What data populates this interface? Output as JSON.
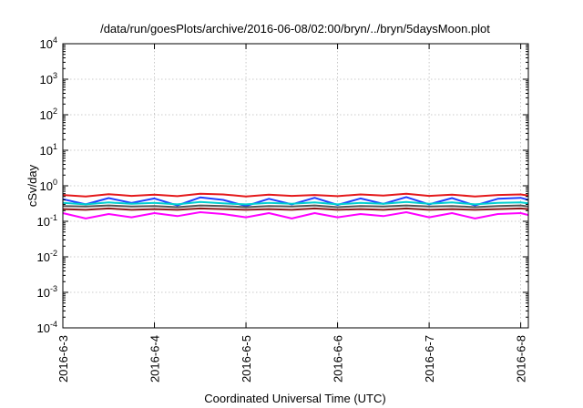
{
  "chart_data": {
    "type": "line",
    "title": "/data/run/goesPlots/archive/2016-06-08/02:00/bryn/../bryn/5daysMoon.plot",
    "xlabel": "Coordinated Universal Time (UTC)",
    "ylabel": "cSv/day",
    "yscale": "log",
    "ylim": [
      0.0001,
      10000
    ],
    "xlim": [
      "2016-06-03T00:00",
      "2016-06-08T02:00"
    ],
    "grid": true,
    "legend": "none",
    "y_ticks": [
      {
        "value": 0.0001,
        "base": "10",
        "exp": "-4"
      },
      {
        "value": 0.001,
        "base": "10",
        "exp": "-3"
      },
      {
        "value": 0.01,
        "base": "10",
        "exp": "-2"
      },
      {
        "value": 0.1,
        "base": "10",
        "exp": "-1"
      },
      {
        "value": 1,
        "base": "10",
        "exp": "0"
      },
      {
        "value": 10,
        "base": "10",
        "exp": "1"
      },
      {
        "value": 100,
        "base": "10",
        "exp": "2"
      },
      {
        "value": 1000,
        "base": "10",
        "exp": "3"
      },
      {
        "value": 10000,
        "base": "10",
        "exp": "4"
      }
    ],
    "x_ticks": [
      {
        "value": "2016-06-03T00:00",
        "label": "2016-6-3"
      },
      {
        "value": "2016-06-04T00:00",
        "label": "2016-6-4"
      },
      {
        "value": "2016-06-05T00:00",
        "label": "2016-6-5"
      },
      {
        "value": "2016-06-06T00:00",
        "label": "2016-6-6"
      },
      {
        "value": "2016-06-07T00:00",
        "label": "2016-6-7"
      },
      {
        "value": "2016-06-08T00:00",
        "label": "2016-6-8"
      }
    ],
    "series": [
      {
        "color": "#e41a1c",
        "values": [
          {
            "x": "2016-06-03T00:00",
            "y": 0.55
          },
          {
            "x": "2016-06-03T06:00",
            "y": 0.5
          },
          {
            "x": "2016-06-03T12:00",
            "y": 0.58
          },
          {
            "x": "2016-06-03T18:00",
            "y": 0.52
          },
          {
            "x": "2016-06-04T00:00",
            "y": 0.56
          },
          {
            "x": "2016-06-04T06:00",
            "y": 0.51
          },
          {
            "x": "2016-06-04T12:00",
            "y": 0.6
          },
          {
            "x": "2016-06-04T18:00",
            "y": 0.57
          },
          {
            "x": "2016-06-05T00:00",
            "y": 0.5
          },
          {
            "x": "2016-06-05T06:00",
            "y": 0.56
          },
          {
            "x": "2016-06-05T12:00",
            "y": 0.52
          },
          {
            "x": "2016-06-05T18:00",
            "y": 0.55
          },
          {
            "x": "2016-06-06T00:00",
            "y": 0.51
          },
          {
            "x": "2016-06-06T06:00",
            "y": 0.57
          },
          {
            "x": "2016-06-06T12:00",
            "y": 0.53
          },
          {
            "x": "2016-06-06T18:00",
            "y": 0.6
          },
          {
            "x": "2016-06-07T00:00",
            "y": 0.52
          },
          {
            "x": "2016-06-07T06:00",
            "y": 0.56
          },
          {
            "x": "2016-06-07T12:00",
            "y": 0.5
          },
          {
            "x": "2016-06-07T18:00",
            "y": 0.55
          },
          {
            "x": "2016-06-08T00:00",
            "y": 0.57
          },
          {
            "x": "2016-06-08T02:00",
            "y": 0.53
          }
        ]
      },
      {
        "color": "#1f3fff",
        "values": [
          {
            "x": "2016-06-03T00:00",
            "y": 0.42
          },
          {
            "x": "2016-06-03T06:00",
            "y": 0.3
          },
          {
            "x": "2016-06-03T12:00",
            "y": 0.45
          },
          {
            "x": "2016-06-03T18:00",
            "y": 0.33
          },
          {
            "x": "2016-06-04T00:00",
            "y": 0.44
          },
          {
            "x": "2016-06-04T06:00",
            "y": 0.28
          },
          {
            "x": "2016-06-04T12:00",
            "y": 0.47
          },
          {
            "x": "2016-06-04T18:00",
            "y": 0.4
          },
          {
            "x": "2016-06-05T00:00",
            "y": 0.27
          },
          {
            "x": "2016-06-05T06:00",
            "y": 0.43
          },
          {
            "x": "2016-06-05T12:00",
            "y": 0.3
          },
          {
            "x": "2016-06-05T18:00",
            "y": 0.46
          },
          {
            "x": "2016-06-06T00:00",
            "y": 0.29
          },
          {
            "x": "2016-06-06T06:00",
            "y": 0.44
          },
          {
            "x": "2016-06-06T12:00",
            "y": 0.31
          },
          {
            "x": "2016-06-06T18:00",
            "y": 0.48
          },
          {
            "x": "2016-06-07T00:00",
            "y": 0.3
          },
          {
            "x": "2016-06-07T06:00",
            "y": 0.45
          },
          {
            "x": "2016-06-07T12:00",
            "y": 0.28
          },
          {
            "x": "2016-06-07T18:00",
            "y": 0.43
          },
          {
            "x": "2016-06-08T00:00",
            "y": 0.46
          },
          {
            "x": "2016-06-08T02:00",
            "y": 0.4
          }
        ]
      },
      {
        "color": "#00cfcf",
        "values": [
          {
            "x": "2016-06-03T00:00",
            "y": 0.33
          },
          {
            "x": "2016-06-03T06:00",
            "y": 0.3
          },
          {
            "x": "2016-06-03T12:00",
            "y": 0.34
          },
          {
            "x": "2016-06-03T18:00",
            "y": 0.31
          },
          {
            "x": "2016-06-04T00:00",
            "y": 0.33
          },
          {
            "x": "2016-06-04T06:00",
            "y": 0.3
          },
          {
            "x": "2016-06-04T12:00",
            "y": 0.35
          },
          {
            "x": "2016-06-04T18:00",
            "y": 0.32
          },
          {
            "x": "2016-06-05T00:00",
            "y": 0.3
          },
          {
            "x": "2016-06-05T06:00",
            "y": 0.33
          },
          {
            "x": "2016-06-05T12:00",
            "y": 0.31
          },
          {
            "x": "2016-06-05T18:00",
            "y": 0.34
          },
          {
            "x": "2016-06-06T00:00",
            "y": 0.3
          },
          {
            "x": "2016-06-06T06:00",
            "y": 0.33
          },
          {
            "x": "2016-06-06T12:00",
            "y": 0.31
          },
          {
            "x": "2016-06-06T18:00",
            "y": 0.35
          },
          {
            "x": "2016-06-07T00:00",
            "y": 0.31
          },
          {
            "x": "2016-06-07T06:00",
            "y": 0.34
          },
          {
            "x": "2016-06-07T12:00",
            "y": 0.3
          },
          {
            "x": "2016-06-07T18:00",
            "y": 0.33
          },
          {
            "x": "2016-06-08T00:00",
            "y": 0.34
          },
          {
            "x": "2016-06-08T02:00",
            "y": 0.32
          }
        ]
      },
      {
        "color": "#555555",
        "values": [
          {
            "x": "2016-06-03T00:00",
            "y": 0.27
          },
          {
            "x": "2016-06-03T06:00",
            "y": 0.26
          },
          {
            "x": "2016-06-03T12:00",
            "y": 0.28
          },
          {
            "x": "2016-06-03T18:00",
            "y": 0.26
          },
          {
            "x": "2016-06-04T00:00",
            "y": 0.27
          },
          {
            "x": "2016-06-04T06:00",
            "y": 0.25
          },
          {
            "x": "2016-06-04T12:00",
            "y": 0.28
          },
          {
            "x": "2016-06-04T18:00",
            "y": 0.27
          },
          {
            "x": "2016-06-05T00:00",
            "y": 0.25
          },
          {
            "x": "2016-06-05T06:00",
            "y": 0.27
          },
          {
            "x": "2016-06-05T12:00",
            "y": 0.26
          },
          {
            "x": "2016-06-05T18:00",
            "y": 0.28
          },
          {
            "x": "2016-06-06T00:00",
            "y": 0.25
          },
          {
            "x": "2016-06-06T06:00",
            "y": 0.27
          },
          {
            "x": "2016-06-06T12:00",
            "y": 0.26
          },
          {
            "x": "2016-06-06T18:00",
            "y": 0.28
          },
          {
            "x": "2016-06-07T00:00",
            "y": 0.26
          },
          {
            "x": "2016-06-07T06:00",
            "y": 0.27
          },
          {
            "x": "2016-06-07T12:00",
            "y": 0.25
          },
          {
            "x": "2016-06-07T18:00",
            "y": 0.27
          },
          {
            "x": "2016-06-08T00:00",
            "y": 0.28
          },
          {
            "x": "2016-06-08T02:00",
            "y": 0.26
          }
        ]
      },
      {
        "color": "#8b1a1a",
        "values": [
          {
            "x": "2016-06-03T00:00",
            "y": 0.22
          },
          {
            "x": "2016-06-03T06:00",
            "y": 0.21
          },
          {
            "x": "2016-06-03T12:00",
            "y": 0.23
          },
          {
            "x": "2016-06-03T18:00",
            "y": 0.21
          },
          {
            "x": "2016-06-04T00:00",
            "y": 0.22
          },
          {
            "x": "2016-06-04T06:00",
            "y": 0.21
          },
          {
            "x": "2016-06-04T12:00",
            "y": 0.23
          },
          {
            "x": "2016-06-04T18:00",
            "y": 0.22
          },
          {
            "x": "2016-06-05T00:00",
            "y": 0.21
          },
          {
            "x": "2016-06-05T06:00",
            "y": 0.22
          },
          {
            "x": "2016-06-05T12:00",
            "y": 0.21
          },
          {
            "x": "2016-06-05T18:00",
            "y": 0.23
          },
          {
            "x": "2016-06-06T00:00",
            "y": 0.21
          },
          {
            "x": "2016-06-06T06:00",
            "y": 0.22
          },
          {
            "x": "2016-06-06T12:00",
            "y": 0.21
          },
          {
            "x": "2016-06-06T18:00",
            "y": 0.23
          },
          {
            "x": "2016-06-07T00:00",
            "y": 0.21
          },
          {
            "x": "2016-06-07T06:00",
            "y": 0.22
          },
          {
            "x": "2016-06-07T12:00",
            "y": 0.21
          },
          {
            "x": "2016-06-07T18:00",
            "y": 0.22
          },
          {
            "x": "2016-06-08T00:00",
            "y": 0.23
          },
          {
            "x": "2016-06-08T02:00",
            "y": 0.22
          }
        ]
      },
      {
        "color": "#ff00ff",
        "values": [
          {
            "x": "2016-06-03T00:00",
            "y": 0.17
          },
          {
            "x": "2016-06-03T06:00",
            "y": 0.12
          },
          {
            "x": "2016-06-03T12:00",
            "y": 0.16
          },
          {
            "x": "2016-06-03T18:00",
            "y": 0.13
          },
          {
            "x": "2016-06-04T00:00",
            "y": 0.17
          },
          {
            "x": "2016-06-04T06:00",
            "y": 0.14
          },
          {
            "x": "2016-06-04T12:00",
            "y": 0.18
          },
          {
            "x": "2016-06-04T18:00",
            "y": 0.16
          },
          {
            "x": "2016-06-05T00:00",
            "y": 0.13
          },
          {
            "x": "2016-06-05T06:00",
            "y": 0.17
          },
          {
            "x": "2016-06-05T12:00",
            "y": 0.12
          },
          {
            "x": "2016-06-05T18:00",
            "y": 0.17
          },
          {
            "x": "2016-06-06T00:00",
            "y": 0.13
          },
          {
            "x": "2016-06-06T06:00",
            "y": 0.16
          },
          {
            "x": "2016-06-06T12:00",
            "y": 0.14
          },
          {
            "x": "2016-06-06T18:00",
            "y": 0.18
          },
          {
            "x": "2016-06-07T00:00",
            "y": 0.13
          },
          {
            "x": "2016-06-07T06:00",
            "y": 0.17
          },
          {
            "x": "2016-06-07T12:00",
            "y": 0.12
          },
          {
            "x": "2016-06-07T18:00",
            "y": 0.16
          },
          {
            "x": "2016-06-08T00:00",
            "y": 0.17
          },
          {
            "x": "2016-06-08T02:00",
            "y": 0.15
          }
        ]
      }
    ]
  }
}
